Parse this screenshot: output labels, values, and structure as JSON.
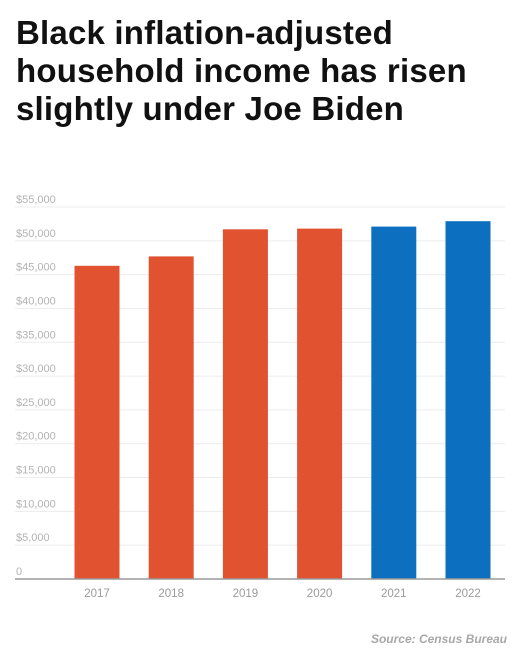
{
  "title": "Black inflation-adjusted household income has risen slightly under Joe Biden",
  "source": "Source: Census Bureau",
  "colors": {
    "first_period": "#e05230",
    "second_period": "#0d6fbf"
  },
  "chart_data": {
    "type": "bar",
    "title": "Black inflation-adjusted household income has risen slightly under Joe Biden",
    "xlabel": "",
    "ylabel": "",
    "categories": [
      "2017",
      "2018",
      "2019",
      "2020",
      "2021",
      "2022"
    ],
    "values": [
      46300,
      47700,
      51700,
      51800,
      52100,
      52900
    ],
    "bar_colors": [
      "#e05230",
      "#e05230",
      "#e05230",
      "#e05230",
      "#0d6fbf",
      "#0d6fbf"
    ],
    "ylim": [
      0,
      55000
    ],
    "yticks": [
      0,
      5000,
      10000,
      15000,
      20000,
      25000,
      30000,
      35000,
      40000,
      45000,
      50000,
      55000
    ],
    "ytick_labels": [
      "0",
      "$5,000",
      "$10,000",
      "$15,000",
      "$20,000",
      "$25,000",
      "$30,000",
      "$35,000",
      "$40,000",
      "$45,000",
      "$50,000",
      "$55,000"
    ],
    "grid": true,
    "legend": "none"
  }
}
